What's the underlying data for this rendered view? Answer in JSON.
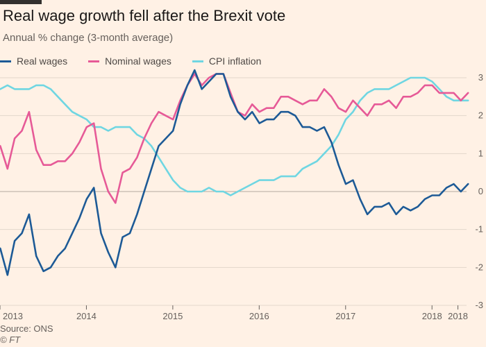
{
  "chart_data": {
    "type": "line",
    "title": "Real wage growth fell after the Brexit vote",
    "subtitle": "Annual % change (3-month average)",
    "source": "Source: ONS",
    "copyright": "© FT",
    "ylim": [
      -3,
      3
    ],
    "yticks": [
      3,
      2,
      1,
      0,
      -1,
      -2,
      -3
    ],
    "x_axis": {
      "start": 2013.0,
      "end": 2018.4
    },
    "xticks": [
      {
        "value": 2013.0,
        "label": "2013"
      },
      {
        "value": 2014.0,
        "label": "2014"
      },
      {
        "value": 2015.0,
        "label": "2015"
      },
      {
        "value": 2016.0,
        "label": "2016"
      },
      {
        "value": 2017.0,
        "label": "2017"
      },
      {
        "value": 2018.0,
        "label": "2018"
      },
      {
        "value": 2018.3,
        "label": "2018"
      }
    ],
    "grid": true,
    "legend_position": "top-left",
    "x_start": 2012.92,
    "x_step": 0.0833,
    "series": [
      {
        "name": "Real wages",
        "color": "#1d5a96",
        "values": [
          -1.4,
          -1.5,
          -2.2,
          -1.3,
          -1.1,
          -0.6,
          -1.7,
          -2.1,
          -2.0,
          -1.7,
          -1.5,
          -1.1,
          -0.7,
          -0.2,
          0.1,
          -1.1,
          -1.6,
          -2.0,
          -1.2,
          -1.1,
          -0.6,
          0.0,
          0.6,
          1.2,
          1.4,
          1.6,
          2.3,
          2.8,
          3.2,
          2.7,
          2.9,
          3.1,
          3.1,
          2.5,
          2.1,
          1.9,
          2.1,
          1.8,
          1.9,
          1.9,
          2.1,
          2.1,
          2.0,
          1.7,
          1.7,
          1.6,
          1.7,
          1.3,
          0.7,
          0.2,
          0.3,
          -0.2,
          -0.6,
          -0.4,
          -0.4,
          -0.3,
          -0.6,
          -0.4,
          -0.5,
          -0.4,
          -0.2,
          -0.1,
          -0.1,
          0.1,
          0.2,
          0.0,
          0.2
        ]
      },
      {
        "name": "Nominal wages",
        "color": "#e65a97",
        "values": [
          1.3,
          1.2,
          0.6,
          1.4,
          1.6,
          2.1,
          1.1,
          0.7,
          0.7,
          0.8,
          0.8,
          1.0,
          1.3,
          1.7,
          1.8,
          0.6,
          0.0,
          -0.3,
          0.5,
          0.6,
          0.9,
          1.4,
          1.8,
          2.1,
          2.0,
          1.9,
          2.4,
          2.8,
          3.1,
          2.8,
          3.0,
          3.1,
          3.1,
          2.6,
          2.1,
          2.0,
          2.3,
          2.1,
          2.2,
          2.2,
          2.5,
          2.5,
          2.4,
          2.3,
          2.4,
          2.4,
          2.7,
          2.5,
          2.2,
          2.1,
          2.4,
          2.2,
          2.0,
          2.3,
          2.3,
          2.4,
          2.2,
          2.5,
          2.5,
          2.6,
          2.8,
          2.8,
          2.6,
          2.6,
          2.6,
          2.4,
          2.6
        ]
      },
      {
        "name": "CPI inflation",
        "color": "#6fd6e2",
        "values": [
          2.7,
          2.7,
          2.8,
          2.7,
          2.7,
          2.7,
          2.8,
          2.8,
          2.7,
          2.5,
          2.3,
          2.1,
          2.0,
          1.9,
          1.7,
          1.7,
          1.6,
          1.7,
          1.7,
          1.7,
          1.5,
          1.4,
          1.2,
          0.9,
          0.6,
          0.3,
          0.1,
          0.0,
          0.0,
          0.0,
          0.1,
          0.0,
          0.0,
          -0.1,
          0.0,
          0.1,
          0.2,
          0.3,
          0.3,
          0.3,
          0.4,
          0.4,
          0.4,
          0.6,
          0.7,
          0.8,
          1.0,
          1.2,
          1.5,
          1.9,
          2.1,
          2.4,
          2.6,
          2.7,
          2.7,
          2.7,
          2.8,
          2.9,
          3.0,
          3.0,
          3.0,
          2.9,
          2.7,
          2.5,
          2.4,
          2.4,
          2.4
        ]
      }
    ]
  }
}
